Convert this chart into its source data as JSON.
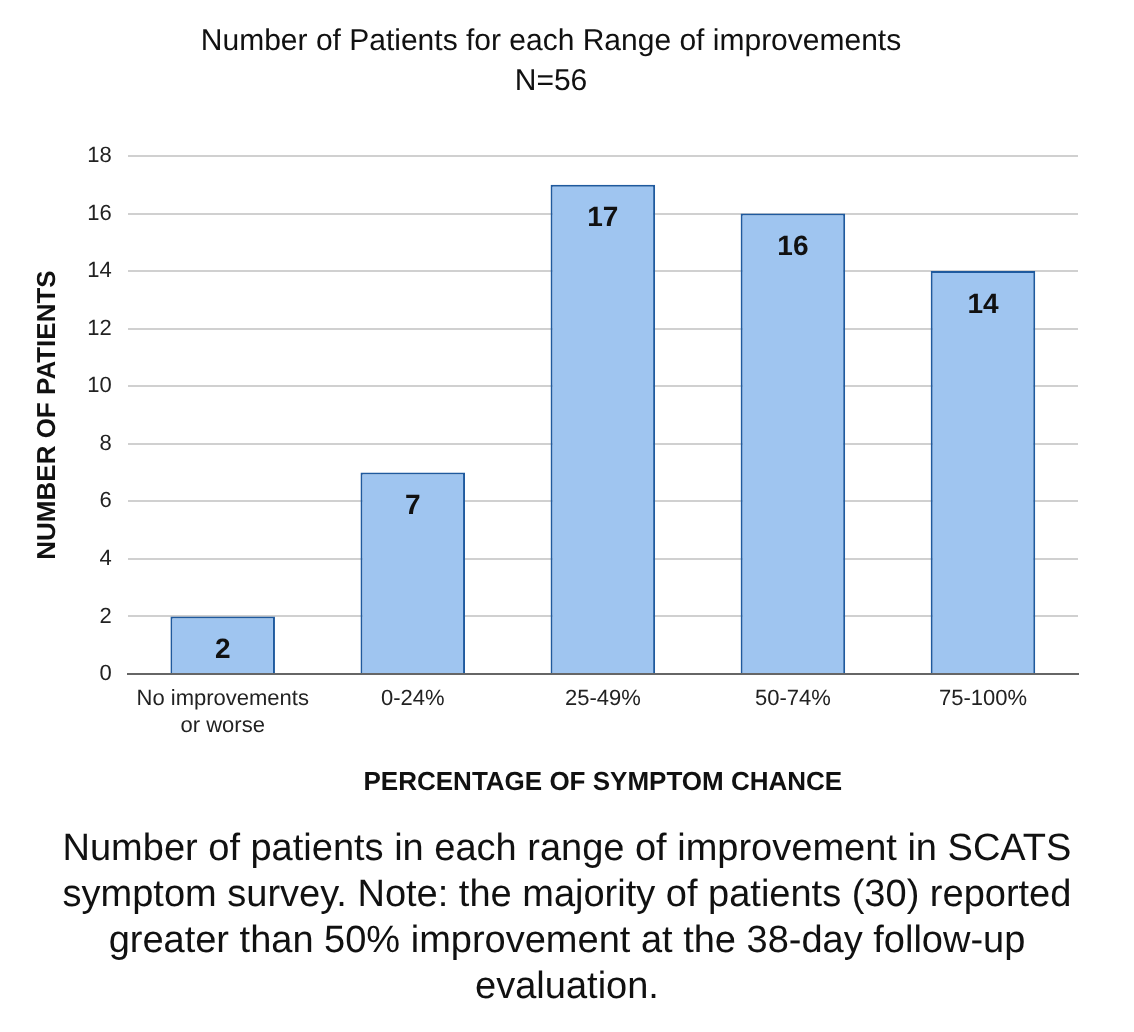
{
  "chart_data": {
    "type": "bar",
    "title": "Number of Patients for each Range of improvements",
    "subtitle": "N=56",
    "xlabel": "PERCENTAGE OF SYMPTOM CHANCE",
    "ylabel": "NUMBER OF PATIENTS",
    "categories": [
      "No improvements or worse",
      "0-24%",
      "25-49%",
      "50-74%",
      "75-100%"
    ],
    "values": [
      2,
      7,
      17,
      16,
      14
    ],
    "color": "#9fc5f0",
    "ylim": [
      0,
      18
    ],
    "yticks": [
      0,
      2,
      4,
      6,
      8,
      10,
      12,
      14,
      16,
      18
    ],
    "grid": "y",
    "data_labels": true,
    "annotations": [
      "Number of patients in each range of improvement in SCATS symptom survey. Note: the majority of patients (30) reported greater than 50% improvement at the 38-day follow-up evaluation."
    ]
  }
}
